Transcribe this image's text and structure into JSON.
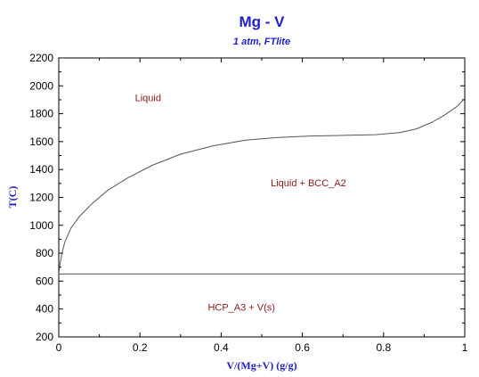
{
  "chart_data": {
    "type": "line",
    "title": "Mg - V",
    "subtitle": "1 atm, FTlite",
    "xlabel": "V/(Mg+V) (g/g)",
    "ylabel": "T(C)",
    "xlim": [
      0,
      1
    ],
    "ylim": [
      200,
      2200
    ],
    "x_ticks": [
      "0",
      "0.2",
      "0.4",
      "0.6",
      "0.8",
      "1"
    ],
    "y_ticks": [
      "200",
      "400",
      "600",
      "800",
      "1000",
      "1200",
      "1400",
      "1600",
      "1800",
      "2000",
      "2200"
    ],
    "grid": false,
    "series": [
      {
        "points": [
          [
            0,
            650
          ],
          [
            0.003,
            720
          ],
          [
            0.008,
            800
          ],
          [
            0.015,
            880
          ],
          [
            0.03,
            980
          ],
          [
            0.05,
            1060
          ],
          [
            0.08,
            1150
          ],
          [
            0.12,
            1250
          ],
          [
            0.17,
            1340
          ],
          [
            0.23,
            1430
          ],
          [
            0.3,
            1510
          ],
          [
            0.38,
            1570
          ],
          [
            0.46,
            1610
          ],
          [
            0.54,
            1630
          ],
          [
            0.62,
            1640
          ],
          [
            0.7,
            1645
          ],
          [
            0.78,
            1650
          ],
          [
            0.84,
            1665
          ],
          [
            0.88,
            1690
          ],
          [
            0.92,
            1740
          ],
          [
            0.95,
            1790
          ],
          [
            0.98,
            1850
          ],
          [
            1.0,
            1910
          ]
        ],
        "color": "#555555"
      },
      {
        "points": [
          [
            0,
            651
          ],
          [
            1,
            651
          ]
        ],
        "color": "#555555"
      }
    ],
    "annotations": [
      {
        "text": "Liquid",
        "x": 0.22,
        "y": 1890
      },
      {
        "text": "Liquid + BCC_A2",
        "x": 0.615,
        "y": 1280
      },
      {
        "text": "HCP_A3 + V(s)",
        "x": 0.45,
        "y": 390
      }
    ],
    "colors": {
      "title": "#1f1fc8",
      "annotation": "#8b1a1a",
      "curve": "#555555",
      "frame": "#000000"
    }
  }
}
